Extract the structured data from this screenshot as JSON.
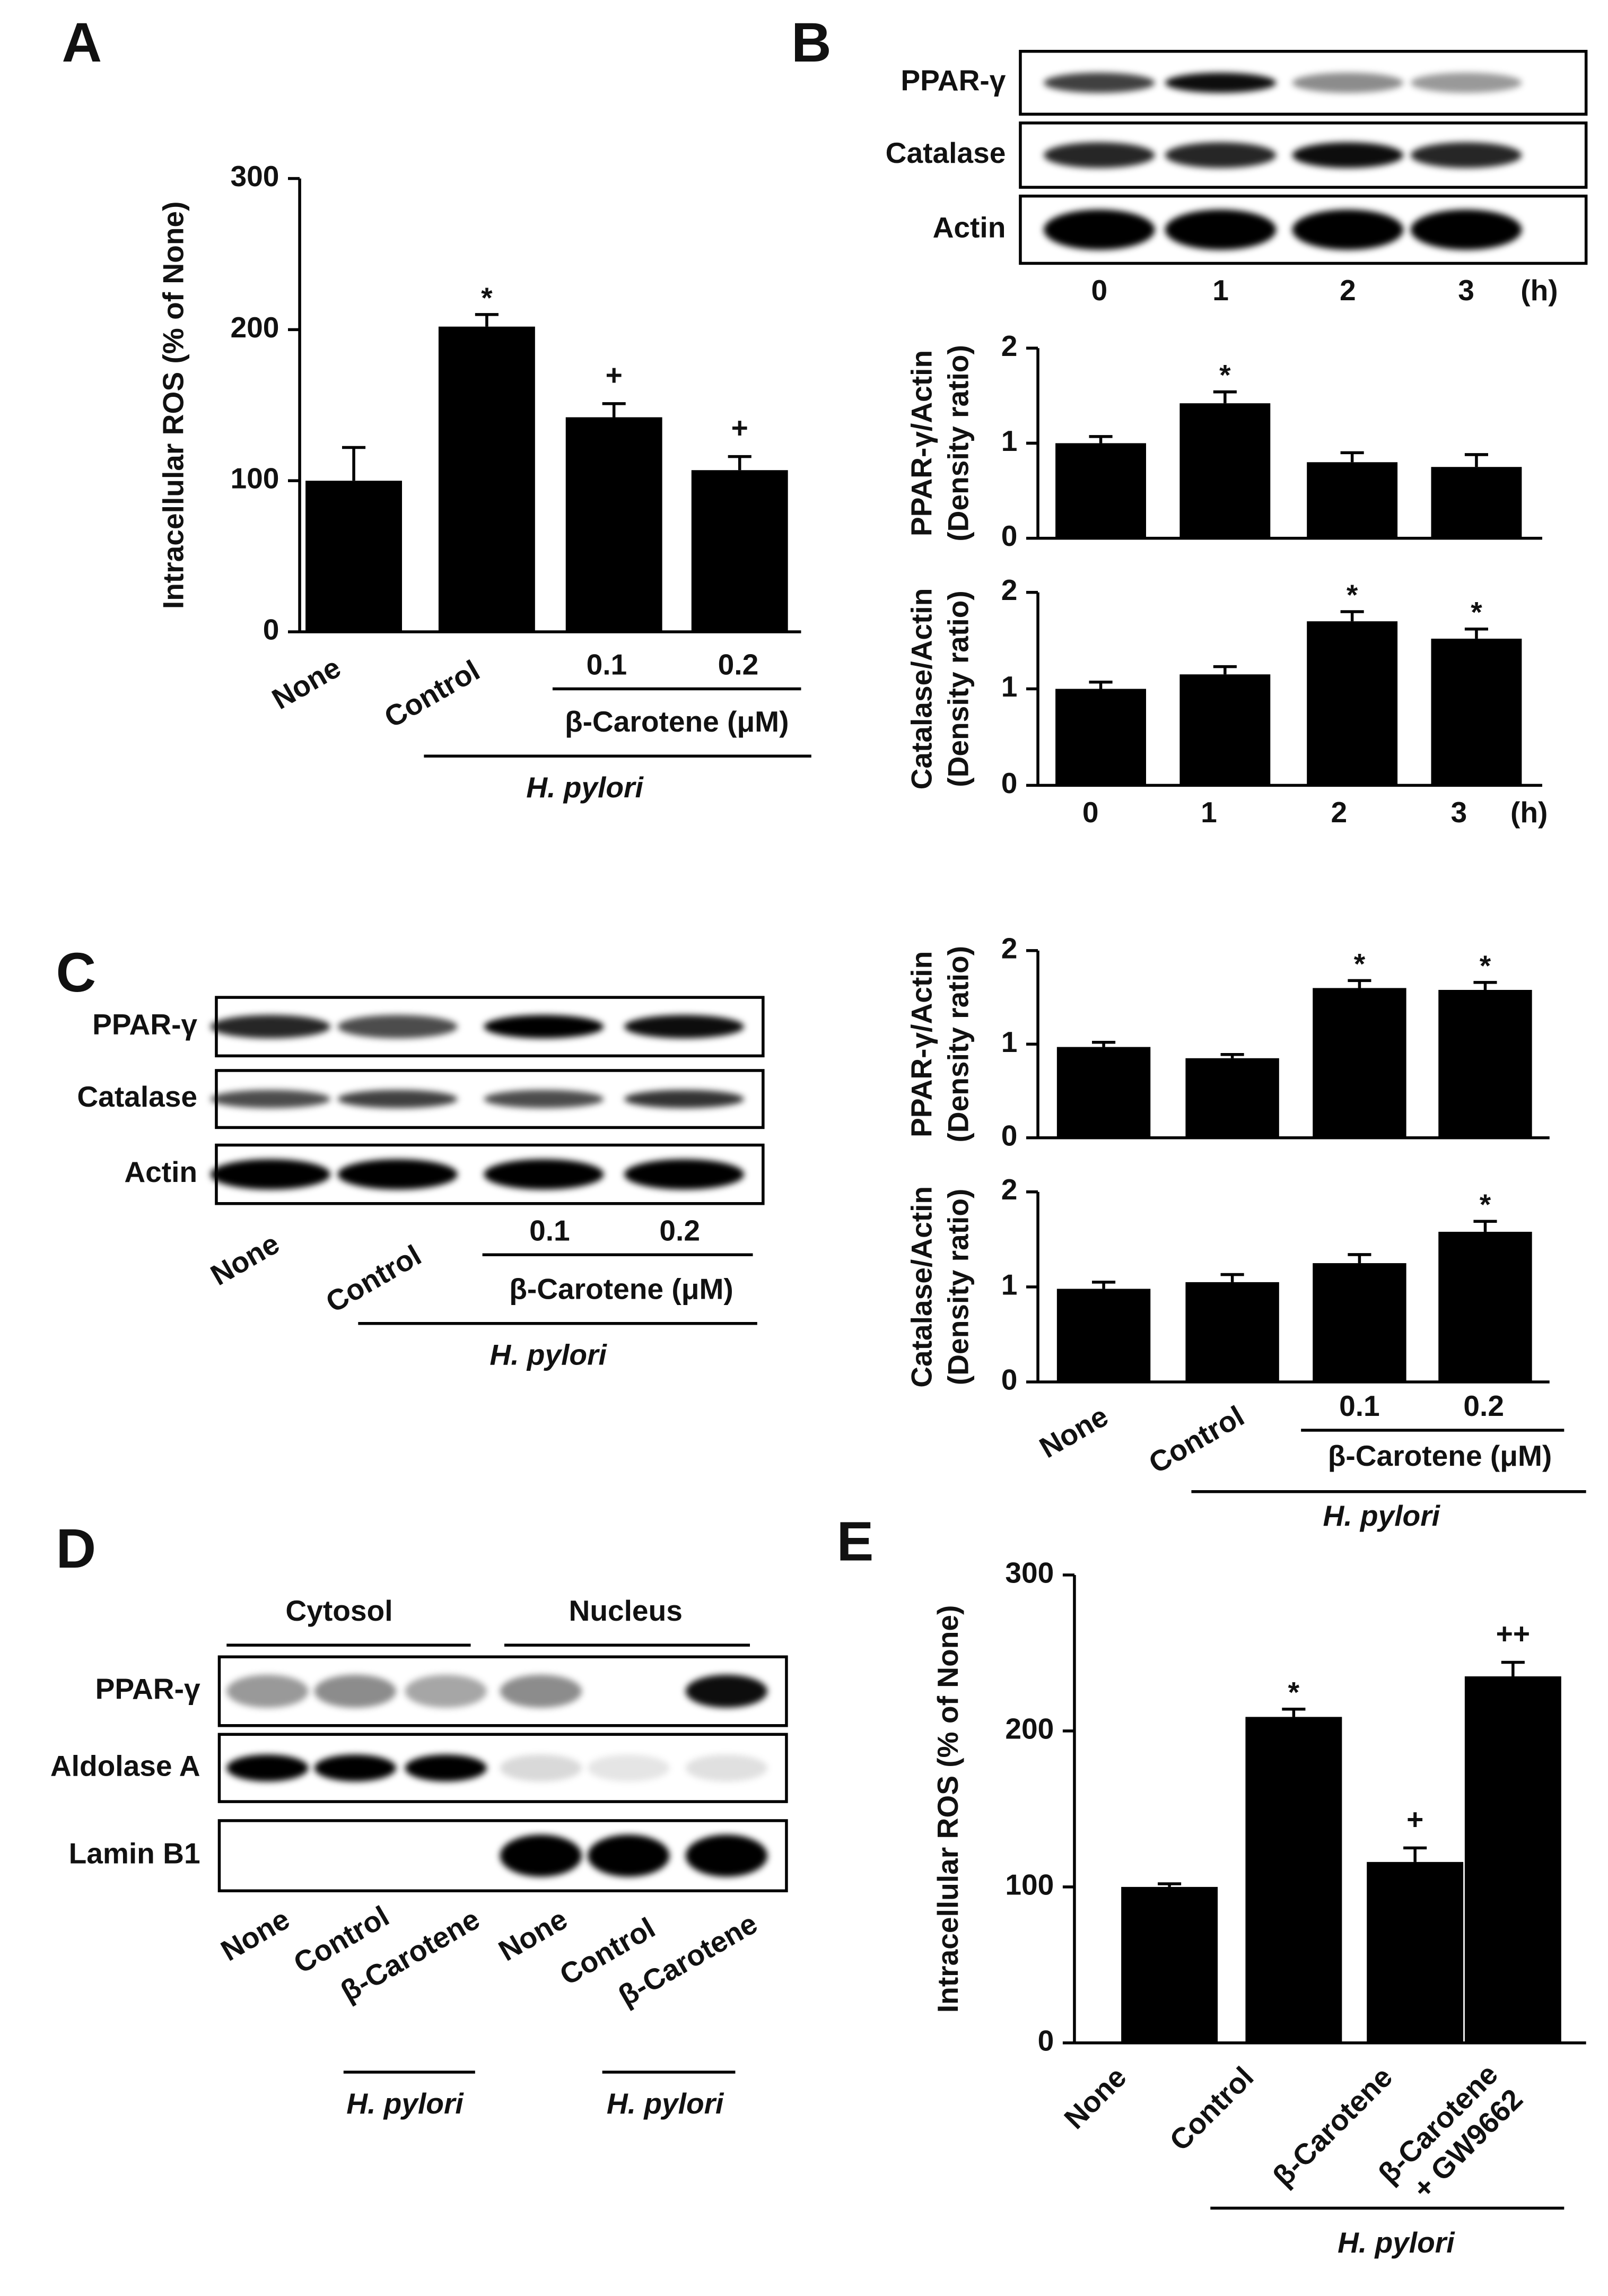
{
  "panel_labels": [
    "A",
    "B",
    "C",
    "D",
    "E"
  ],
  "chart_data": [
    {
      "type": "bar",
      "ylabel": "Intracellular ROS (% of None)",
      "ylim": [
        0,
        300
      ],
      "yticks": [
        0,
        100,
        200,
        300
      ],
      "categories": [
        "None",
        "Control",
        "0.1",
        "0.2"
      ],
      "values": [
        100,
        202,
        142,
        107
      ],
      "errors": [
        22,
        8,
        9,
        9
      ],
      "color": "#000000",
      "annotations": [
        {
          "category": "Control",
          "text": "*"
        },
        {
          "category": "0.1",
          "text": "+"
        },
        {
          "category": "0.2",
          "text": "+"
        }
      ],
      "group_labels": [
        "β-Carotene (μM)",
        "H. pylori"
      ]
    },
    {
      "type": "bar",
      "ylim": [
        0,
        2
      ],
      "yticks": [
        0,
        1,
        2
      ],
      "categories": [
        "0",
        "1",
        "2",
        "3"
      ],
      "x_unit": "(h)",
      "color": "#000000",
      "series": [
        {
          "name": [
            "PPAR-γ/Actin",
            "(Density ratio)"
          ],
          "values": [
            1.0,
            1.42,
            0.8,
            0.75
          ],
          "errors": [
            0.07,
            0.12,
            0.1,
            0.13
          ],
          "annotations": [
            {
              "category": "1",
              "text": "*"
            }
          ]
        },
        {
          "name": [
            "Catalase/Actin",
            "(Density ratio)"
          ],
          "values": [
            1.0,
            1.15,
            1.7,
            1.52
          ],
          "errors": [
            0.07,
            0.08,
            0.1,
            0.1
          ],
          "annotations": [
            {
              "category": "2",
              "text": "*"
            },
            {
              "category": "3",
              "text": "*"
            }
          ]
        }
      ]
    },
    {
      "type": "bar",
      "ylim": [
        0,
        2
      ],
      "yticks": [
        0,
        1,
        2
      ],
      "categories": [
        "None",
        "Control",
        "0.1",
        "0.2"
      ],
      "color": "#000000",
      "series": [
        {
          "name": [
            "PPAR-γ/Actin",
            "(Density ratio)"
          ],
          "values": [
            0.97,
            0.85,
            1.6,
            1.58
          ],
          "errors": [
            0.05,
            0.04,
            0.08,
            0.08
          ],
          "annotations": [
            {
              "category": "0.1",
              "text": "*"
            },
            {
              "category": "0.2",
              "text": "*"
            }
          ]
        },
        {
          "name": [
            "Catalase/Actin",
            "(Density ratio)"
          ],
          "values": [
            0.98,
            1.05,
            1.25,
            1.58
          ],
          "errors": [
            0.07,
            0.08,
            0.09,
            0.11
          ],
          "annotations": [
            {
              "category": "0.2",
              "text": "*"
            }
          ]
        }
      ],
      "group_labels": [
        "β-Carotene (μM)",
        "H. pylori"
      ]
    },
    {
      "type": "bar",
      "ylabel": "Intracellular ROS (% of None)",
      "ylim": [
        0,
        300
      ],
      "yticks": [
        0,
        100,
        200,
        300
      ],
      "categories": [
        "None",
        "Control",
        "β-Carotene",
        "β-Carotene + GW9662"
      ],
      "values": [
        100,
        209,
        116,
        235
      ],
      "errors": [
        2,
        5,
        9,
        9
      ],
      "color": "#000000",
      "annotations": [
        {
          "category": "Control",
          "text": "*"
        },
        {
          "category": "β-Carotene",
          "text": "+"
        },
        {
          "category": "β-Carotene + GW9662",
          "text": "++"
        }
      ],
      "group_labels": [
        "H. pylori"
      ]
    }
  ],
  "blots": [
    {
      "rows": [
        "PPAR-γ",
        "Catalase",
        "Actin"
      ],
      "lanes": [
        "0",
        "1",
        "2",
        "3"
      ],
      "unit": "(h)"
    },
    {
      "rows": [
        "PPAR-γ",
        "Catalase",
        "Actin"
      ],
      "lanes": [
        "None",
        "Control",
        "0.1",
        "0.2"
      ],
      "group_labels": [
        "β-Carotene (μM)",
        "H. pylori"
      ]
    },
    {
      "headers": [
        "Cytosol",
        "Nucleus"
      ],
      "rows": [
        "PPAR-γ",
        "Aldolase A",
        "Lamin B1"
      ],
      "lanes": [
        "None",
        "Control",
        "β-Carotene",
        "None",
        "Control",
        "β-Carotene"
      ],
      "group_labels": [
        "H. pylori",
        "H. pylori"
      ]
    }
  ]
}
